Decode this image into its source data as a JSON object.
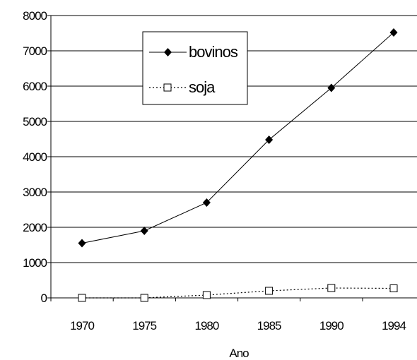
{
  "chart_data": {
    "type": "line",
    "title": "",
    "xlabel": "Ano",
    "ylabel": "",
    "categories": [
      "1970",
      "1975",
      "1980",
      "1985",
      "1990",
      "1994"
    ],
    "ylim": [
      0,
      8000
    ],
    "yticks": [
      "0",
      "1000",
      "2000",
      "3000",
      "4000",
      "5000",
      "6000",
      "7000",
      "8000"
    ],
    "grid": true,
    "legend_position": "top-center",
    "series": [
      {
        "name": "bovinos",
        "values": [
          1550,
          1900,
          2700,
          4480,
          5950,
          7520
        ],
        "line_style": "solid",
        "marker": "filled-diamond",
        "color": "#000000"
      },
      {
        "name": "soja",
        "values": [
          0,
          0,
          80,
          200,
          280,
          270
        ],
        "line_style": "dotted",
        "marker": "open-square",
        "color": "#000000"
      }
    ]
  }
}
